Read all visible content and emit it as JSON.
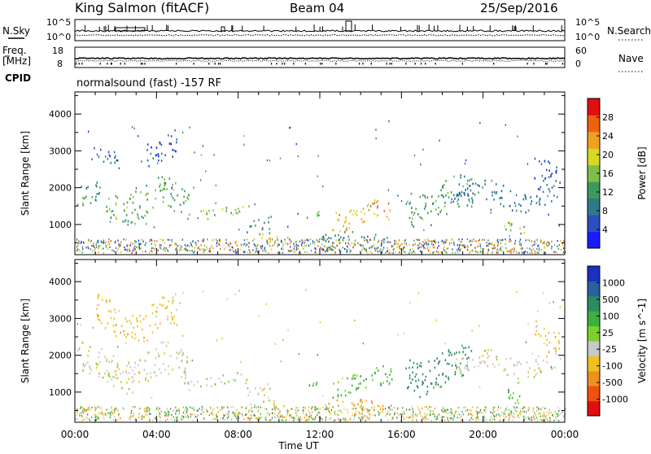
{
  "header": {
    "station": "King Salmon (fitACF)",
    "beam": "Beam 04",
    "date": "25/Sep/2016"
  },
  "noise_panel": {
    "left_label": "N.Sky",
    "left_ticks": [
      "10^5",
      "10^0"
    ],
    "right_label": "N.Search",
    "right_ticks": [
      "10^5",
      "10^0"
    ]
  },
  "freq_panel": {
    "left_label_1": "Freq.",
    "left_label_2": "[MHz]",
    "left_ticks": [
      "18",
      "8"
    ],
    "right_label": "Nave",
    "right_ticks": [
      "60",
      "0"
    ]
  },
  "cpid": {
    "label": "CPID",
    "text": "normalsound (fast) -157 RF"
  },
  "chart_data": [
    {
      "type": "heatmap",
      "panel": "power",
      "ylabel": "Slant Range [km]",
      "xlabel": "Time UT",
      "xlim_hours": [
        0,
        24
      ],
      "ylim_km": [
        180,
        4600
      ],
      "y_ticks": [
        1000,
        2000,
        3000,
        4000
      ],
      "x_tick_labels": [
        "00:00",
        "04:00",
        "08:00",
        "12:00",
        "16:00",
        "20:00",
        "00:00"
      ],
      "colorbar": {
        "label": "Power [dB]",
        "ticks": [
          "4",
          "8",
          "12",
          "16",
          "20",
          "24",
          "28"
        ],
        "colors": [
          "#1a1aff",
          "#2b4fbf",
          "#2e7a8a",
          "#3c9a5a",
          "#7cc04a",
          "#d8d820",
          "#f0a020",
          "#f06010",
          "#e01010"
        ]
      },
      "echo_regions": [
        {
          "t0": 0.1,
          "t1": 1.2,
          "r0": 1200,
          "r1": 2100,
          "level": 12
        },
        {
          "t0": 0.8,
          "t1": 2.2,
          "r0": 2400,
          "r1": 3000,
          "level": 8
        },
        {
          "t0": 1.5,
          "t1": 5.6,
          "r0": 1100,
          "r1": 2200,
          "level": 14
        },
        {
          "t0": 3.5,
          "t1": 5.0,
          "r0": 2600,
          "r1": 3500,
          "level": 6
        },
        {
          "t0": 5.5,
          "t1": 8.5,
          "r0": 1150,
          "r1": 1500,
          "level": 16
        },
        {
          "t0": 8.4,
          "t1": 9.6,
          "r0": 700,
          "r1": 1300,
          "level": 10
        },
        {
          "t0": 9.0,
          "t1": 10.5,
          "r0": 400,
          "r1": 700,
          "level": 20
        },
        {
          "t0": 11.3,
          "t1": 12.0,
          "r0": 1050,
          "r1": 1350,
          "level": 14
        },
        {
          "t0": 12.6,
          "t1": 15.6,
          "r0": 900,
          "r1": 1600,
          "level": 22
        },
        {
          "t0": 12.0,
          "t1": 15.5,
          "r0": 450,
          "r1": 800,
          "level": 10
        },
        {
          "t0": 16.2,
          "t1": 19.5,
          "r0": 1000,
          "r1": 2200,
          "level": 12
        },
        {
          "t0": 18.5,
          "t1": 23.6,
          "r0": 1400,
          "r1": 2100,
          "level": 8
        },
        {
          "t0": 21.0,
          "t1": 22.0,
          "r0": 500,
          "r1": 1000,
          "level": 16
        },
        {
          "t0": 22.5,
          "t1": 23.8,
          "r0": 2000,
          "r1": 2900,
          "level": 6
        }
      ]
    },
    {
      "type": "heatmap",
      "panel": "velocity",
      "ylabel": "Slant Range [km]",
      "xlabel": "Time UT",
      "xlim_hours": [
        0,
        24
      ],
      "ylim_km": [
        180,
        4600
      ],
      "y_ticks": [
        1000,
        2000,
        3000,
        4000
      ],
      "x_tick_labels": [
        "00:00",
        "04:00",
        "08:00",
        "12:00",
        "16:00",
        "20:00",
        "00:00"
      ],
      "colorbar": {
        "label": "Velocity [m s^-1]",
        "ticks": [
          "1000",
          "500",
          "100",
          "25",
          "-25",
          "-100",
          "-500",
          "-1000"
        ],
        "colors": [
          "#1a30c0",
          "#2860a0",
          "#2e8a60",
          "#3cb040",
          "#7cd030",
          "#c8c8c8",
          "#f0c020",
          "#f09020",
          "#f05010",
          "#e01010"
        ]
      },
      "echo_regions": [
        {
          "t0": 0.1,
          "t1": 5.6,
          "r0": 1100,
          "r1": 2200,
          "v": 0
        },
        {
          "t0": 1.0,
          "t1": 5.0,
          "r0": 2400,
          "r1": 3500,
          "v": -60
        },
        {
          "t0": 5.5,
          "t1": 8.5,
          "r0": 1150,
          "r1": 1500,
          "v": 0
        },
        {
          "t0": 8.4,
          "t1": 9.6,
          "r0": 700,
          "r1": 1300,
          "v": 0
        },
        {
          "t0": 9.0,
          "t1": 10.5,
          "r0": 400,
          "r1": 700,
          "v": -120
        },
        {
          "t0": 11.3,
          "t1": 12.0,
          "r0": 1050,
          "r1": 1350,
          "v": 70
        },
        {
          "t0": 12.6,
          "t1": 15.6,
          "r0": 900,
          "r1": 1600,
          "v": 70
        },
        {
          "t0": 12.0,
          "t1": 15.5,
          "r0": 450,
          "r1": 800,
          "v": -120
        },
        {
          "t0": 16.2,
          "t1": 19.5,
          "r0": 1000,
          "r1": 2200,
          "v": 150
        },
        {
          "t0": 18.5,
          "t1": 23.6,
          "r0": 1400,
          "r1": 2100,
          "v": 0
        },
        {
          "t0": 21.0,
          "t1": 22.0,
          "r0": 500,
          "r1": 1000,
          "v": 70
        },
        {
          "t0": 22.5,
          "t1": 23.8,
          "r0": 2000,
          "r1": 2900,
          "v": -60
        }
      ]
    }
  ]
}
